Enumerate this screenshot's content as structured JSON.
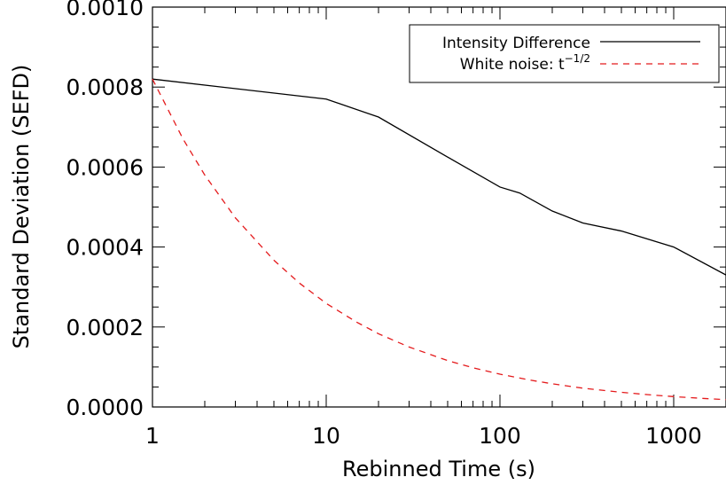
{
  "chart_data": {
    "type": "line",
    "xlabel": "Rebinned Time (s)",
    "ylabel": "Standard Deviation (SEFD)",
    "x_scale": "log",
    "xlim": [
      1,
      2000
    ],
    "ylim": [
      0.0,
      0.001
    ],
    "x_ticks": [
      "1",
      "10",
      "100",
      "1000"
    ],
    "y_ticks": [
      "0.0000",
      "0.0002",
      "0.0004",
      "0.0006",
      "0.0008",
      "0.0010"
    ],
    "legend_position": "top-right",
    "series": [
      {
        "name": "Intensity Difference",
        "color": "#000000",
        "style": "solid",
        "x": [
          1,
          10,
          20,
          50,
          100,
          130,
          200,
          300,
          500,
          1000,
          2000
        ],
        "y": [
          0.00082,
          0.00077,
          0.000725,
          0.000625,
          0.00055,
          0.000535,
          0.00049,
          0.00046,
          0.00044,
          0.0004,
          0.00033
        ]
      },
      {
        "name": "White noise: t",
        "name_exponent": "−1/2",
        "color": "#e41a1c",
        "style": "dashed",
        "x": [
          1,
          1.5,
          2,
          3,
          5,
          7,
          10,
          15,
          20,
          30,
          50,
          70,
          100,
          150,
          200,
          300,
          500,
          700,
          1000,
          1500,
          2000
        ],
        "y": [
          0.00082,
          0.00067,
          0.00058,
          0.000473,
          0.000367,
          0.00031,
          0.000259,
          0.000212,
          0.000183,
          0.00015,
          0.000116,
          9.8e-05,
          8.2e-05,
          6.7e-05,
          5.8e-05,
          4.7e-05,
          3.67e-05,
          3.1e-05,
          2.59e-05,
          2.12e-05,
          1.83e-05
        ]
      }
    ]
  }
}
